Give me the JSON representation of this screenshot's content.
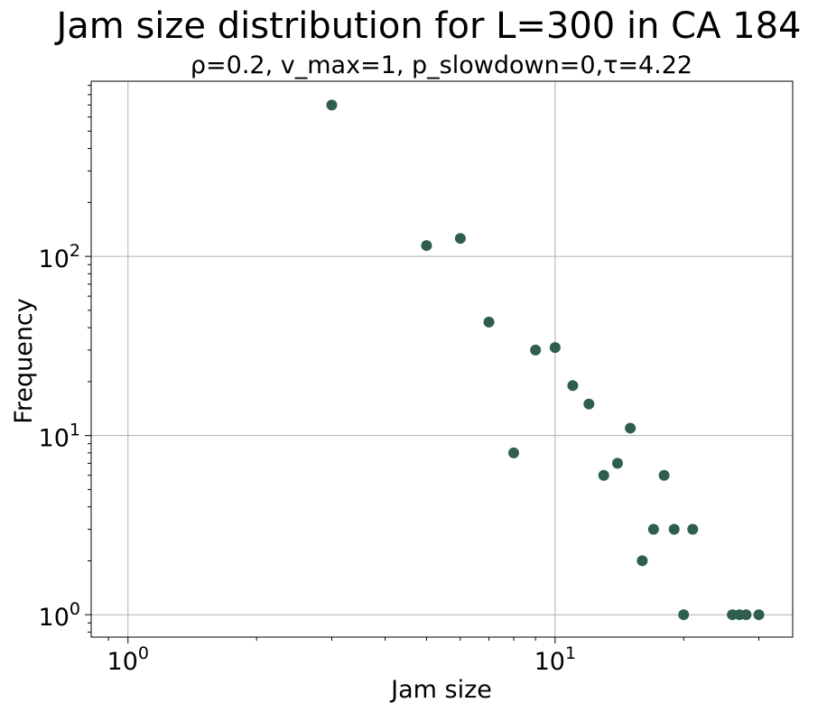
{
  "chart_data": {
    "type": "scatter",
    "title": "Jam size distribution for L=300 in CA 184",
    "subtitle": "ρ=0.2, v_max=1, p_slowdown=0,τ=4.22",
    "xlabel": "Jam size",
    "ylabel": "Frequency",
    "xscale": "log",
    "yscale": "log",
    "xlim": [
      0.82,
      36
    ],
    "ylim": [
      0.75,
      950
    ],
    "grid": true,
    "marker_color": "#2f5d50",
    "x_ticks": [
      {
        "value": 1,
        "base": "10",
        "exp": "0"
      },
      {
        "value": 10,
        "base": "10",
        "exp": "1"
      }
    ],
    "y_ticks": [
      {
        "value": 1,
        "base": "10",
        "exp": "0"
      },
      {
        "value": 10,
        "base": "10",
        "exp": "1"
      },
      {
        "value": 100,
        "base": "10",
        "exp": "2"
      }
    ],
    "points": [
      {
        "x": 3,
        "y": 700
      },
      {
        "x": 5,
        "y": 115
      },
      {
        "x": 6,
        "y": 126
      },
      {
        "x": 7,
        "y": 43
      },
      {
        "x": 8,
        "y": 8
      },
      {
        "x": 9,
        "y": 30
      },
      {
        "x": 10,
        "y": 31
      },
      {
        "x": 11,
        "y": 19
      },
      {
        "x": 12,
        "y": 15
      },
      {
        "x": 13,
        "y": 6
      },
      {
        "x": 14,
        "y": 7
      },
      {
        "x": 15,
        "y": 11
      },
      {
        "x": 16,
        "y": 2
      },
      {
        "x": 17,
        "y": 3
      },
      {
        "x": 18,
        "y": 6
      },
      {
        "x": 19,
        "y": 3
      },
      {
        "x": 20,
        "y": 1
      },
      {
        "x": 21,
        "y": 3
      },
      {
        "x": 26,
        "y": 1
      },
      {
        "x": 27,
        "y": 1
      },
      {
        "x": 28,
        "y": 1
      },
      {
        "x": 30,
        "y": 1
      }
    ]
  }
}
